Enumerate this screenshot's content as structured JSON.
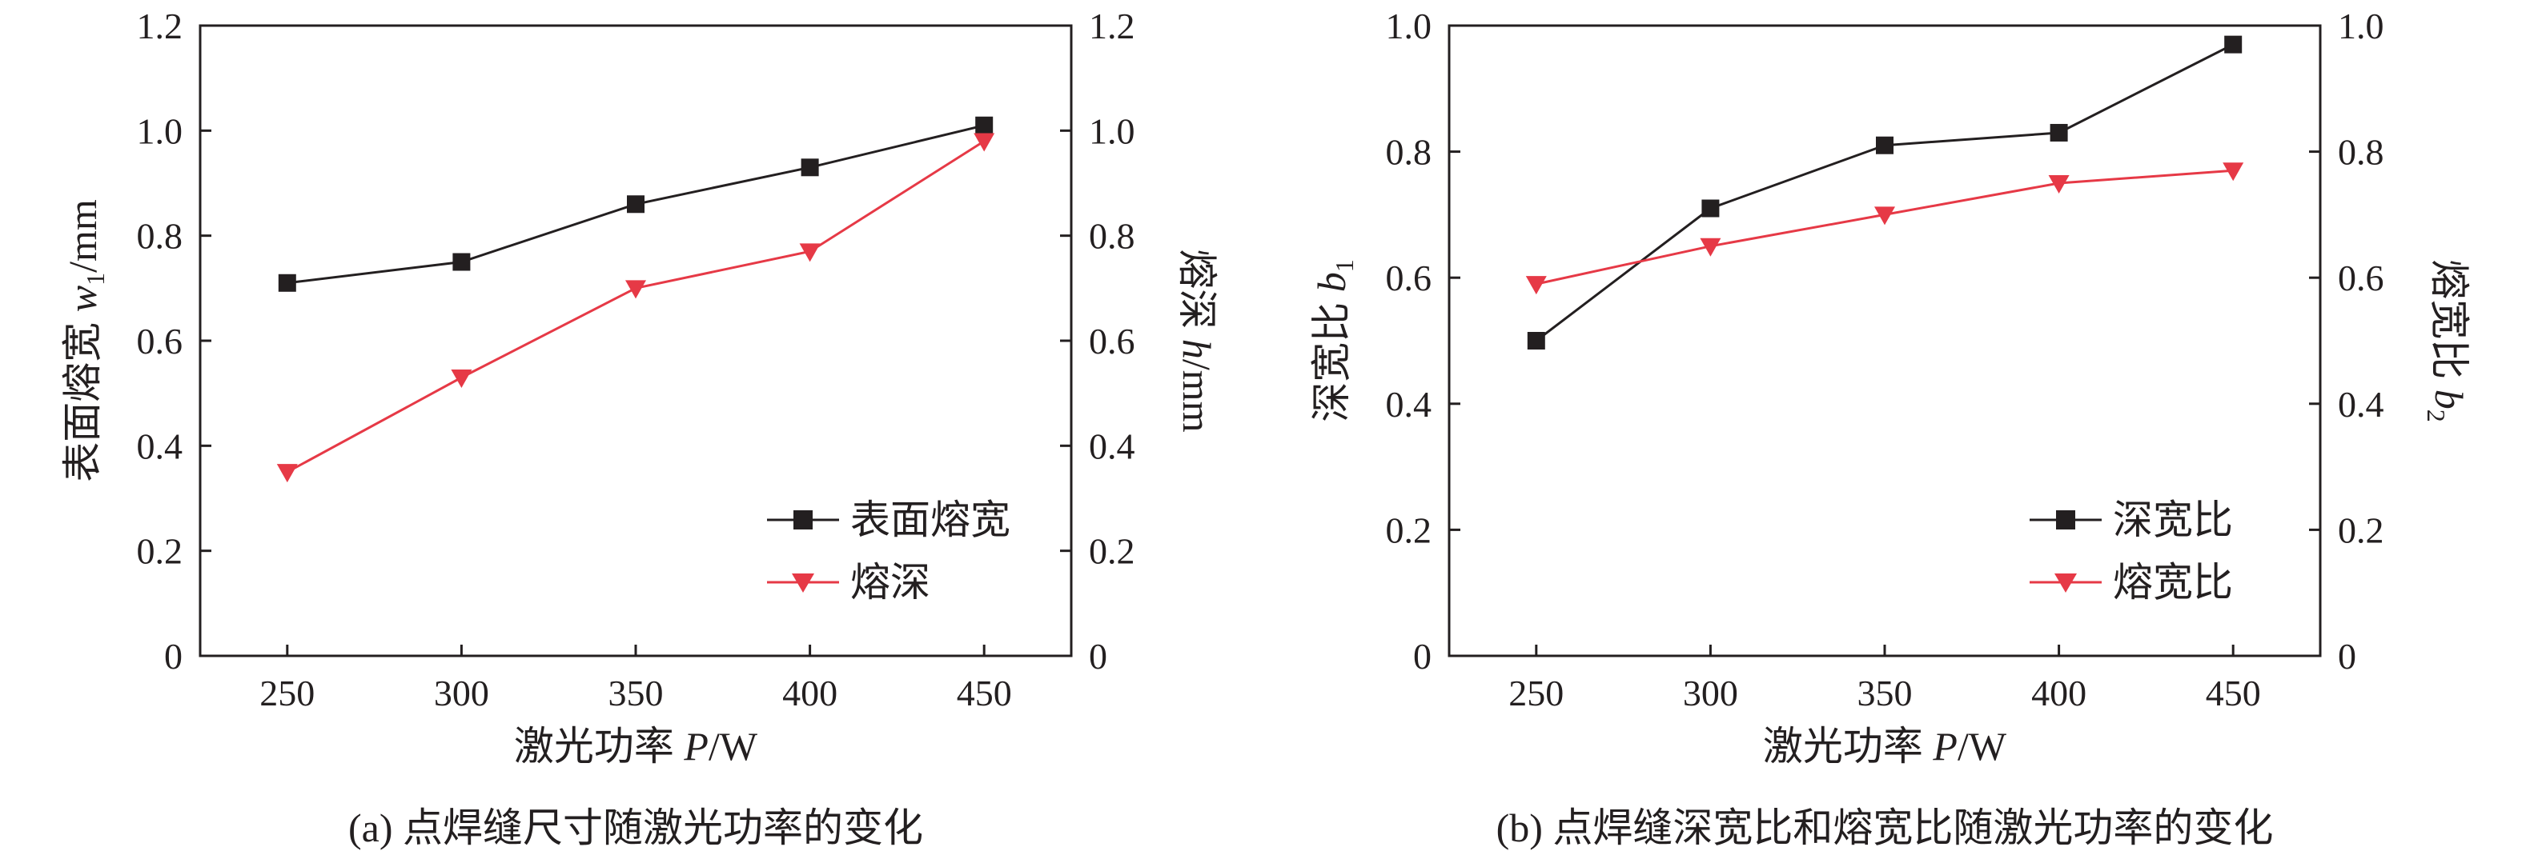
{
  "chart_data": [
    {
      "type": "line",
      "title": "(a) 点焊缝尺寸随激光功率的变化",
      "xlabel": "激光功率 P/W",
      "ylabel_left": "表面熔宽 w1/mm",
      "ylabel_right": "熔深 h/mm",
      "x": [
        250,
        300,
        350,
        400,
        450
      ],
      "x_ticks": [
        "250",
        "300",
        "350",
        "400",
        "450"
      ],
      "xlim": [
        225,
        475
      ],
      "ylim_left": [
        0,
        1.2
      ],
      "ylim_right": [
        0,
        1.2
      ],
      "y_ticks_left": [
        "0",
        "0.2",
        "0.4",
        "0.6",
        "0.8",
        "1.0",
        "1.2"
      ],
      "y_ticks_right": [
        "0",
        "0.2",
        "0.4",
        "0.6",
        "0.8",
        "1.0",
        "1.2"
      ],
      "legend_position": "bottom-right",
      "series": [
        {
          "name": "表面熔宽",
          "axis": "left",
          "marker": "square",
          "color": "#231f20",
          "values": [
            0.71,
            0.75,
            0.86,
            0.93,
            1.01
          ]
        },
        {
          "name": "熔深",
          "axis": "right",
          "marker": "triangle-down",
          "color": "#e63946",
          "values": [
            0.35,
            0.53,
            0.7,
            0.77,
            0.98
          ]
        }
      ]
    },
    {
      "type": "line",
      "title": "(b) 点焊缝深宽比和熔宽比随激光功率的变化",
      "xlabel": "激光功率 P/W",
      "ylabel_left": "深宽比 b1",
      "ylabel_right": "熔宽比 b2",
      "x": [
        250,
        300,
        350,
        400,
        450
      ],
      "x_ticks": [
        "250",
        "300",
        "350",
        "400",
        "450"
      ],
      "xlim": [
        225,
        475
      ],
      "ylim_left": [
        0,
        1.0
      ],
      "ylim_right": [
        0,
        1.0
      ],
      "y_ticks_left": [
        "0",
        "0.2",
        "0.4",
        "0.6",
        "0.8",
        "1.0"
      ],
      "y_ticks_right": [
        "0",
        "0.2",
        "0.4",
        "0.6",
        "0.8",
        "1.0"
      ],
      "legend_position": "bottom-right",
      "series": [
        {
          "name": "深宽比",
          "axis": "left",
          "marker": "square",
          "color": "#231f20",
          "values": [
            0.5,
            0.71,
            0.81,
            0.83,
            0.97
          ]
        },
        {
          "name": "熔宽比",
          "axis": "right",
          "marker": "triangle-down",
          "color": "#e63946",
          "values": [
            0.59,
            0.65,
            0.7,
            0.75,
            0.77
          ]
        }
      ]
    }
  ]
}
